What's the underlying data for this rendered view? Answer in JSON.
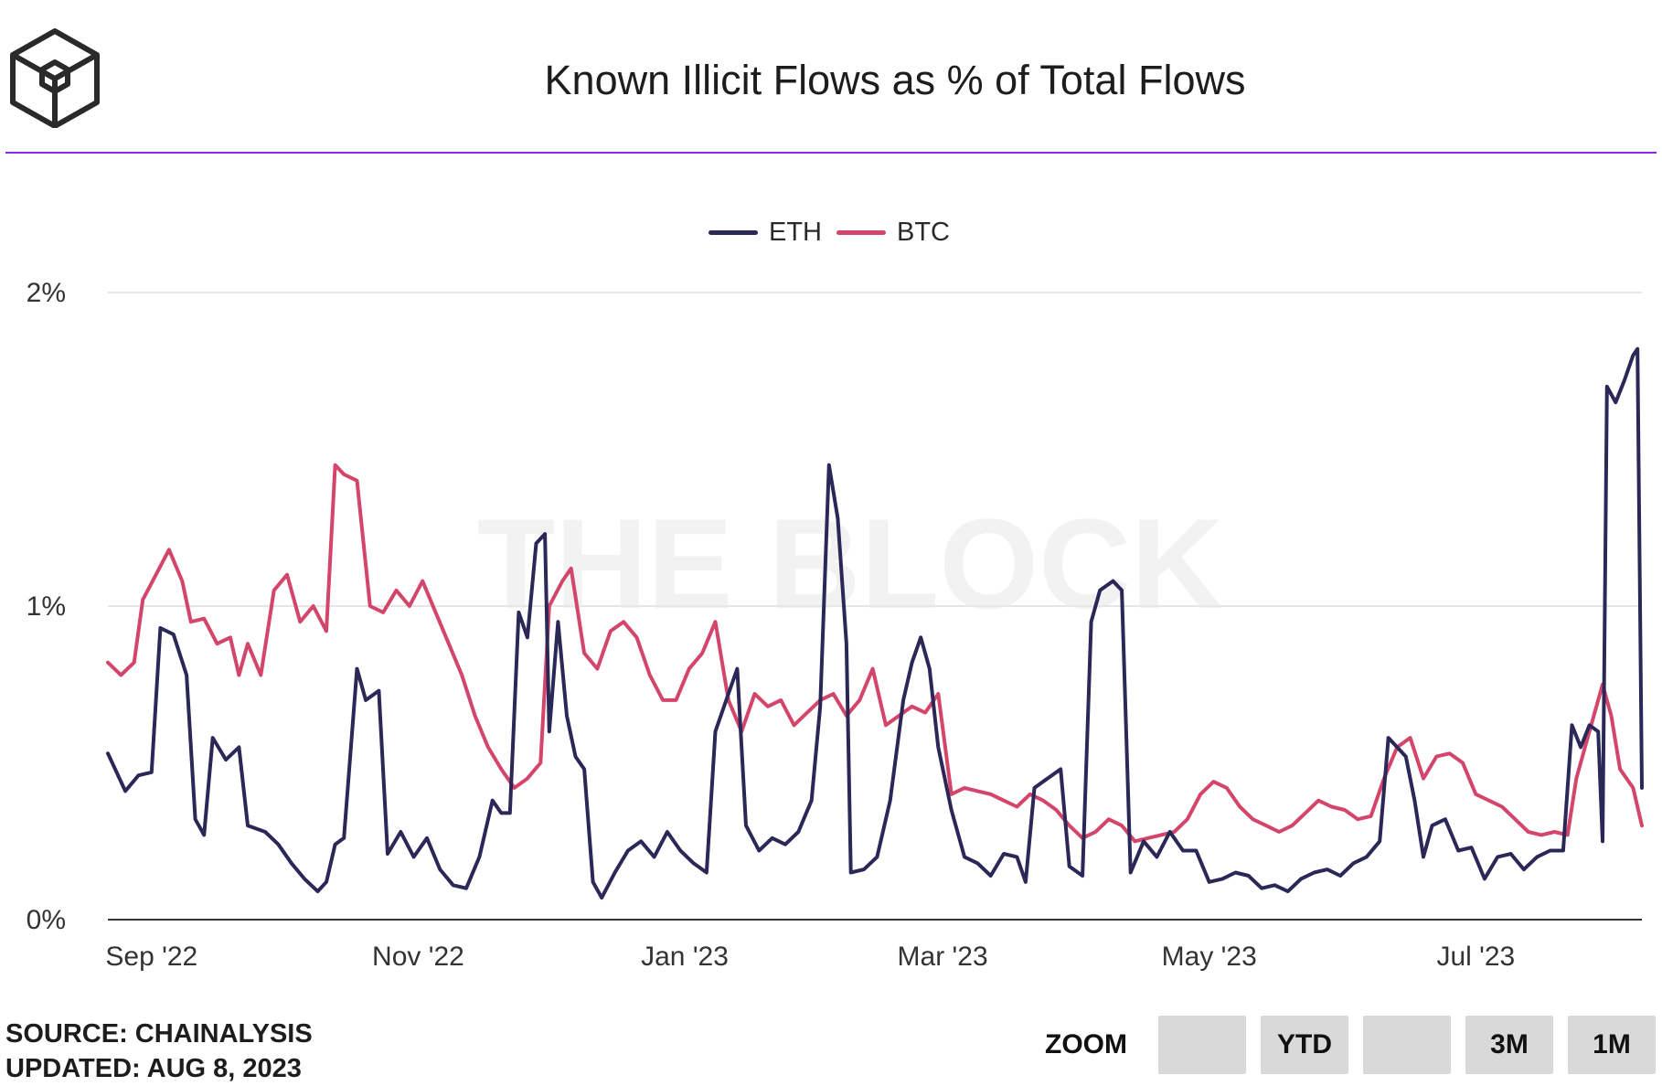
{
  "header": {
    "title": "Known Illicit Flows as % of Total Flows"
  },
  "watermark": "THE BLOCK",
  "footer": {
    "source": "SOURCE: CHAINALYSIS",
    "updated": "UPDATED: AUG 8, 2023"
  },
  "zoom": {
    "label": "ZOOM",
    "buttons": [
      "",
      "YTD",
      "",
      "3M",
      "1M"
    ]
  },
  "colors": {
    "eth": "#2b2757",
    "btc": "#d4456b",
    "accent": "#8a2be2"
  },
  "chart_data": {
    "type": "line",
    "title": "Known Illicit Flows as % of Total Flows",
    "xlabel": "",
    "ylabel": "",
    "ylim": [
      0,
      2
    ],
    "yticks": [
      "0%",
      "1%",
      "2%"
    ],
    "xticks": [
      {
        "label": "Sep '22",
        "date": "2022-09-01"
      },
      {
        "label": "Nov '22",
        "date": "2022-11-01"
      },
      {
        "label": "Jan '23",
        "date": "2023-01-01"
      },
      {
        "label": "Mar '23",
        "date": "2023-03-01"
      },
      {
        "label": "May '23",
        "date": "2023-05-01"
      },
      {
        "label": "Jul '23",
        "date": "2023-07-01"
      }
    ],
    "grid": true,
    "legend_position": "top-center",
    "x_range": [
      "2022-08-22",
      "2023-08-08"
    ],
    "series": [
      {
        "name": "ETH",
        "color": "#2b2757",
        "points": [
          [
            "2022-08-22",
            0.53
          ],
          [
            "2022-08-26",
            0.41
          ],
          [
            "2022-08-29",
            0.46
          ],
          [
            "2022-09-01",
            0.47
          ],
          [
            "2022-09-03",
            0.93
          ],
          [
            "2022-09-06",
            0.91
          ],
          [
            "2022-09-09",
            0.78
          ],
          [
            "2022-09-11",
            0.32
          ],
          [
            "2022-09-13",
            0.27
          ],
          [
            "2022-09-15",
            0.58
          ],
          [
            "2022-09-18",
            0.51
          ],
          [
            "2022-09-21",
            0.55
          ],
          [
            "2022-09-23",
            0.3
          ],
          [
            "2022-09-27",
            0.28
          ],
          [
            "2022-09-30",
            0.24
          ],
          [
            "2022-10-03",
            0.18
          ],
          [
            "2022-10-06",
            0.13
          ],
          [
            "2022-10-09",
            0.09
          ],
          [
            "2022-10-11",
            0.12
          ],
          [
            "2022-10-13",
            0.24
          ],
          [
            "2022-10-15",
            0.26
          ],
          [
            "2022-10-18",
            0.8
          ],
          [
            "2022-10-20",
            0.7
          ],
          [
            "2022-10-23",
            0.73
          ],
          [
            "2022-10-25",
            0.21
          ],
          [
            "2022-10-28",
            0.28
          ],
          [
            "2022-10-31",
            0.2
          ],
          [
            "2022-11-03",
            0.26
          ],
          [
            "2022-11-06",
            0.16
          ],
          [
            "2022-11-09",
            0.11
          ],
          [
            "2022-11-12",
            0.1
          ],
          [
            "2022-11-15",
            0.2
          ],
          [
            "2022-11-18",
            0.38
          ],
          [
            "2022-11-20",
            0.34
          ],
          [
            "2022-11-22",
            0.34
          ],
          [
            "2022-11-24",
            0.98
          ],
          [
            "2022-11-26",
            0.9
          ],
          [
            "2022-11-28",
            1.2
          ],
          [
            "2022-11-30",
            1.23
          ],
          [
            "2022-12-01",
            0.6
          ],
          [
            "2022-12-03",
            0.95
          ],
          [
            "2022-12-05",
            0.65
          ],
          [
            "2022-12-07",
            0.52
          ],
          [
            "2022-12-09",
            0.48
          ],
          [
            "2022-12-11",
            0.12
          ],
          [
            "2022-12-13",
            0.07
          ],
          [
            "2022-12-16",
            0.15
          ],
          [
            "2022-12-19",
            0.22
          ],
          [
            "2022-12-22",
            0.25
          ],
          [
            "2022-12-25",
            0.2
          ],
          [
            "2022-12-28",
            0.28
          ],
          [
            "2022-12-31",
            0.22
          ],
          [
            "2023-01-03",
            0.18
          ],
          [
            "2023-01-06",
            0.15
          ],
          [
            "2023-01-08",
            0.6
          ],
          [
            "2023-01-11",
            0.72
          ],
          [
            "2023-01-13",
            0.8
          ],
          [
            "2023-01-15",
            0.3
          ],
          [
            "2023-01-18",
            0.22
          ],
          [
            "2023-01-21",
            0.26
          ],
          [
            "2023-01-24",
            0.24
          ],
          [
            "2023-01-27",
            0.28
          ],
          [
            "2023-01-30",
            0.38
          ],
          [
            "2023-02-01",
            0.68
          ],
          [
            "2023-02-03",
            1.45
          ],
          [
            "2023-02-05",
            1.28
          ],
          [
            "2023-02-07",
            0.88
          ],
          [
            "2023-02-08",
            0.15
          ],
          [
            "2023-02-11",
            0.16
          ],
          [
            "2023-02-14",
            0.2
          ],
          [
            "2023-02-17",
            0.38
          ],
          [
            "2023-02-20",
            0.7
          ],
          [
            "2023-02-22",
            0.82
          ],
          [
            "2023-02-24",
            0.9
          ],
          [
            "2023-02-26",
            0.8
          ],
          [
            "2023-02-28",
            0.55
          ],
          [
            "2023-03-03",
            0.35
          ],
          [
            "2023-03-06",
            0.2
          ],
          [
            "2023-03-09",
            0.18
          ],
          [
            "2023-03-12",
            0.14
          ],
          [
            "2023-03-15",
            0.21
          ],
          [
            "2023-03-18",
            0.2
          ],
          [
            "2023-03-20",
            0.12
          ],
          [
            "2023-03-22",
            0.42
          ],
          [
            "2023-03-25",
            0.45
          ],
          [
            "2023-03-28",
            0.48
          ],
          [
            "2023-03-30",
            0.17
          ],
          [
            "2023-04-02",
            0.14
          ],
          [
            "2023-04-04",
            0.95
          ],
          [
            "2023-04-06",
            1.05
          ],
          [
            "2023-04-09",
            1.08
          ],
          [
            "2023-04-11",
            1.05
          ],
          [
            "2023-04-13",
            0.15
          ],
          [
            "2023-04-16",
            0.25
          ],
          [
            "2023-04-19",
            0.2
          ],
          [
            "2023-04-22",
            0.28
          ],
          [
            "2023-04-25",
            0.22
          ],
          [
            "2023-04-28",
            0.22
          ],
          [
            "2023-05-01",
            0.12
          ],
          [
            "2023-05-04",
            0.13
          ],
          [
            "2023-05-07",
            0.15
          ],
          [
            "2023-05-10",
            0.14
          ],
          [
            "2023-05-13",
            0.1
          ],
          [
            "2023-05-16",
            0.11
          ],
          [
            "2023-05-19",
            0.09
          ],
          [
            "2023-05-22",
            0.13
          ],
          [
            "2023-05-25",
            0.15
          ],
          [
            "2023-05-28",
            0.16
          ],
          [
            "2023-05-31",
            0.14
          ],
          [
            "2023-06-03",
            0.18
          ],
          [
            "2023-06-06",
            0.2
          ],
          [
            "2023-06-09",
            0.25
          ],
          [
            "2023-06-11",
            0.58
          ],
          [
            "2023-06-13",
            0.55
          ],
          [
            "2023-06-15",
            0.52
          ],
          [
            "2023-06-17",
            0.38
          ],
          [
            "2023-06-19",
            0.2
          ],
          [
            "2023-06-21",
            0.3
          ],
          [
            "2023-06-24",
            0.32
          ],
          [
            "2023-06-27",
            0.22
          ],
          [
            "2023-06-30",
            0.23
          ],
          [
            "2023-07-03",
            0.13
          ],
          [
            "2023-07-06",
            0.2
          ],
          [
            "2023-07-09",
            0.21
          ],
          [
            "2023-07-12",
            0.16
          ],
          [
            "2023-07-15",
            0.2
          ],
          [
            "2023-07-18",
            0.22
          ],
          [
            "2023-07-21",
            0.22
          ],
          [
            "2023-07-23",
            0.62
          ],
          [
            "2023-07-25",
            0.55
          ],
          [
            "2023-07-27",
            0.62
          ],
          [
            "2023-07-29",
            0.6
          ],
          [
            "2023-07-30",
            0.25
          ],
          [
            "2023-07-31",
            1.7
          ],
          [
            "2023-08-02",
            1.65
          ],
          [
            "2023-08-04",
            1.72
          ],
          [
            "2023-08-06",
            1.8
          ],
          [
            "2023-08-07",
            1.82
          ],
          [
            "2023-08-08",
            0.42
          ]
        ]
      },
      {
        "name": "BTC",
        "color": "#d4456b",
        "points": [
          [
            "2022-08-22",
            0.82
          ],
          [
            "2022-08-25",
            0.78
          ],
          [
            "2022-08-28",
            0.82
          ],
          [
            "2022-08-30",
            1.02
          ],
          [
            "2022-09-02",
            1.1
          ],
          [
            "2022-09-05",
            1.18
          ],
          [
            "2022-09-08",
            1.08
          ],
          [
            "2022-09-10",
            0.95
          ],
          [
            "2022-09-13",
            0.96
          ],
          [
            "2022-09-16",
            0.88
          ],
          [
            "2022-09-19",
            0.9
          ],
          [
            "2022-09-21",
            0.78
          ],
          [
            "2022-09-23",
            0.88
          ],
          [
            "2022-09-26",
            0.78
          ],
          [
            "2022-09-29",
            1.05
          ],
          [
            "2022-10-02",
            1.1
          ],
          [
            "2022-10-05",
            0.95
          ],
          [
            "2022-10-08",
            1.0
          ],
          [
            "2022-10-11",
            0.92
          ],
          [
            "2022-10-13",
            1.45
          ],
          [
            "2022-10-15",
            1.42
          ],
          [
            "2022-10-18",
            1.4
          ],
          [
            "2022-10-21",
            1.0
          ],
          [
            "2022-10-24",
            0.98
          ],
          [
            "2022-10-27",
            1.05
          ],
          [
            "2022-10-30",
            1.0
          ],
          [
            "2022-11-02",
            1.08
          ],
          [
            "2022-11-05",
            0.98
          ],
          [
            "2022-11-08",
            0.88
          ],
          [
            "2022-11-11",
            0.78
          ],
          [
            "2022-11-14",
            0.65
          ],
          [
            "2022-11-17",
            0.55
          ],
          [
            "2022-11-20",
            0.48
          ],
          [
            "2022-11-23",
            0.42
          ],
          [
            "2022-11-26",
            0.45
          ],
          [
            "2022-11-29",
            0.5
          ],
          [
            "2022-12-01",
            1.0
          ],
          [
            "2022-12-04",
            1.08
          ],
          [
            "2022-12-06",
            1.12
          ],
          [
            "2022-12-09",
            0.85
          ],
          [
            "2022-12-12",
            0.8
          ],
          [
            "2022-12-15",
            0.92
          ],
          [
            "2022-12-18",
            0.95
          ],
          [
            "2022-12-21",
            0.9
          ],
          [
            "2022-12-24",
            0.78
          ],
          [
            "2022-12-27",
            0.7
          ],
          [
            "2022-12-30",
            0.7
          ],
          [
            "2023-01-02",
            0.8
          ],
          [
            "2023-01-05",
            0.85
          ],
          [
            "2023-01-08",
            0.95
          ],
          [
            "2023-01-11",
            0.7
          ],
          [
            "2023-01-14",
            0.6
          ],
          [
            "2023-01-17",
            0.72
          ],
          [
            "2023-01-20",
            0.68
          ],
          [
            "2023-01-23",
            0.7
          ],
          [
            "2023-01-26",
            0.62
          ],
          [
            "2023-01-29",
            0.66
          ],
          [
            "2023-02-01",
            0.7
          ],
          [
            "2023-02-04",
            0.72
          ],
          [
            "2023-02-07",
            0.65
          ],
          [
            "2023-02-10",
            0.7
          ],
          [
            "2023-02-13",
            0.8
          ],
          [
            "2023-02-16",
            0.62
          ],
          [
            "2023-02-19",
            0.65
          ],
          [
            "2023-02-22",
            0.68
          ],
          [
            "2023-02-25",
            0.66
          ],
          [
            "2023-02-28",
            0.72
          ],
          [
            "2023-03-03",
            0.4
          ],
          [
            "2023-03-06",
            0.42
          ],
          [
            "2023-03-09",
            0.41
          ],
          [
            "2023-03-12",
            0.4
          ],
          [
            "2023-03-15",
            0.38
          ],
          [
            "2023-03-18",
            0.36
          ],
          [
            "2023-03-21",
            0.4
          ],
          [
            "2023-03-24",
            0.38
          ],
          [
            "2023-03-27",
            0.35
          ],
          [
            "2023-03-30",
            0.3
          ],
          [
            "2023-04-02",
            0.26
          ],
          [
            "2023-04-05",
            0.28
          ],
          [
            "2023-04-08",
            0.32
          ],
          [
            "2023-04-11",
            0.3
          ],
          [
            "2023-04-14",
            0.25
          ],
          [
            "2023-04-17",
            0.26
          ],
          [
            "2023-04-20",
            0.27
          ],
          [
            "2023-04-23",
            0.28
          ],
          [
            "2023-04-26",
            0.32
          ],
          [
            "2023-04-29",
            0.4
          ],
          [
            "2023-05-02",
            0.44
          ],
          [
            "2023-05-05",
            0.42
          ],
          [
            "2023-05-08",
            0.36
          ],
          [
            "2023-05-11",
            0.32
          ],
          [
            "2023-05-14",
            0.3
          ],
          [
            "2023-05-17",
            0.28
          ],
          [
            "2023-05-20",
            0.3
          ],
          [
            "2023-05-23",
            0.34
          ],
          [
            "2023-05-26",
            0.38
          ],
          [
            "2023-05-29",
            0.36
          ],
          [
            "2023-06-01",
            0.35
          ],
          [
            "2023-06-04",
            0.32
          ],
          [
            "2023-06-07",
            0.33
          ],
          [
            "2023-06-10",
            0.45
          ],
          [
            "2023-06-13",
            0.55
          ],
          [
            "2023-06-16",
            0.58
          ],
          [
            "2023-06-19",
            0.45
          ],
          [
            "2023-06-22",
            0.52
          ],
          [
            "2023-06-25",
            0.53
          ],
          [
            "2023-06-28",
            0.5
          ],
          [
            "2023-07-01",
            0.4
          ],
          [
            "2023-07-04",
            0.38
          ],
          [
            "2023-07-07",
            0.36
          ],
          [
            "2023-07-10",
            0.32
          ],
          [
            "2023-07-13",
            0.28
          ],
          [
            "2023-07-16",
            0.27
          ],
          [
            "2023-07-19",
            0.28
          ],
          [
            "2023-07-22",
            0.27
          ],
          [
            "2023-07-24",
            0.45
          ],
          [
            "2023-07-27",
            0.6
          ],
          [
            "2023-07-30",
            0.75
          ],
          [
            "2023-08-01",
            0.65
          ],
          [
            "2023-08-03",
            0.48
          ],
          [
            "2023-08-06",
            0.42
          ],
          [
            "2023-08-08",
            0.3
          ]
        ]
      }
    ]
  }
}
